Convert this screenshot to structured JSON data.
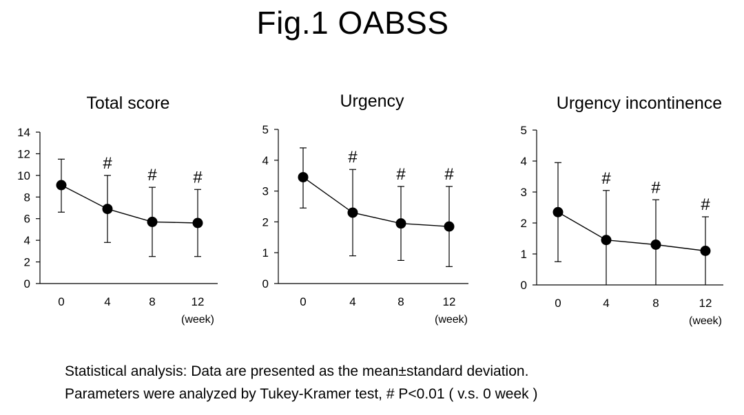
{
  "main_title": "Fig.1 OABSS",
  "chart_data": [
    {
      "type": "line",
      "title": "Total score",
      "xlabel": "(week)",
      "categories": [
        "0",
        "4",
        "8",
        "12"
      ],
      "ylim": [
        0,
        14
      ],
      "yticks": [
        0,
        2,
        4,
        6,
        8,
        10,
        12,
        14
      ],
      "series": [
        {
          "values": [
            9.1,
            6.9,
            5.7,
            5.6
          ],
          "error_upper": [
            11.5,
            10.0,
            8.9,
            8.7
          ],
          "error_lower": [
            6.6,
            3.8,
            2.5,
            2.5
          ]
        }
      ],
      "significance": [
        "",
        "#",
        "#",
        "#"
      ]
    },
    {
      "type": "line",
      "title": "Urgency",
      "xlabel": "(week)",
      "categories": [
        "0",
        "4",
        "8",
        "12"
      ],
      "ylim": [
        0,
        5
      ],
      "yticks": [
        0,
        1,
        2,
        3,
        4,
        5
      ],
      "series": [
        {
          "values": [
            3.45,
            2.3,
            1.95,
            1.85
          ],
          "error_upper": [
            4.4,
            3.7,
            3.15,
            3.15
          ],
          "error_lower": [
            2.45,
            0.9,
            0.75,
            0.55
          ]
        }
      ],
      "significance": [
        "",
        "#",
        "#",
        "#"
      ]
    },
    {
      "type": "line",
      "title": "Urgency incontinence",
      "xlabel": "(week)",
      "categories": [
        "0",
        "4",
        "8",
        "12"
      ],
      "ylim": [
        0,
        5
      ],
      "yticks": [
        0,
        1,
        2,
        3,
        4,
        5
      ],
      "series": [
        {
          "values": [
            2.35,
            1.45,
            1.3,
            1.1
          ],
          "error_upper": [
            3.95,
            3.05,
            2.75,
            2.2
          ],
          "error_lower": [
            0.75,
            0.0,
            0.0,
            0.0
          ]
        }
      ],
      "significance": [
        "",
        "#",
        "#",
        "#"
      ]
    }
  ],
  "footnote": {
    "line1": "Statistical analysis: Data are presented as the mean±standard deviation.",
    "line2": "Parameters were analyzed by Tukey-Kramer test, #  P<0.01  ( v.s. 0 week )"
  },
  "colors": {
    "line": "#000000",
    "marker": "#000000",
    "background": "#ffffff"
  }
}
